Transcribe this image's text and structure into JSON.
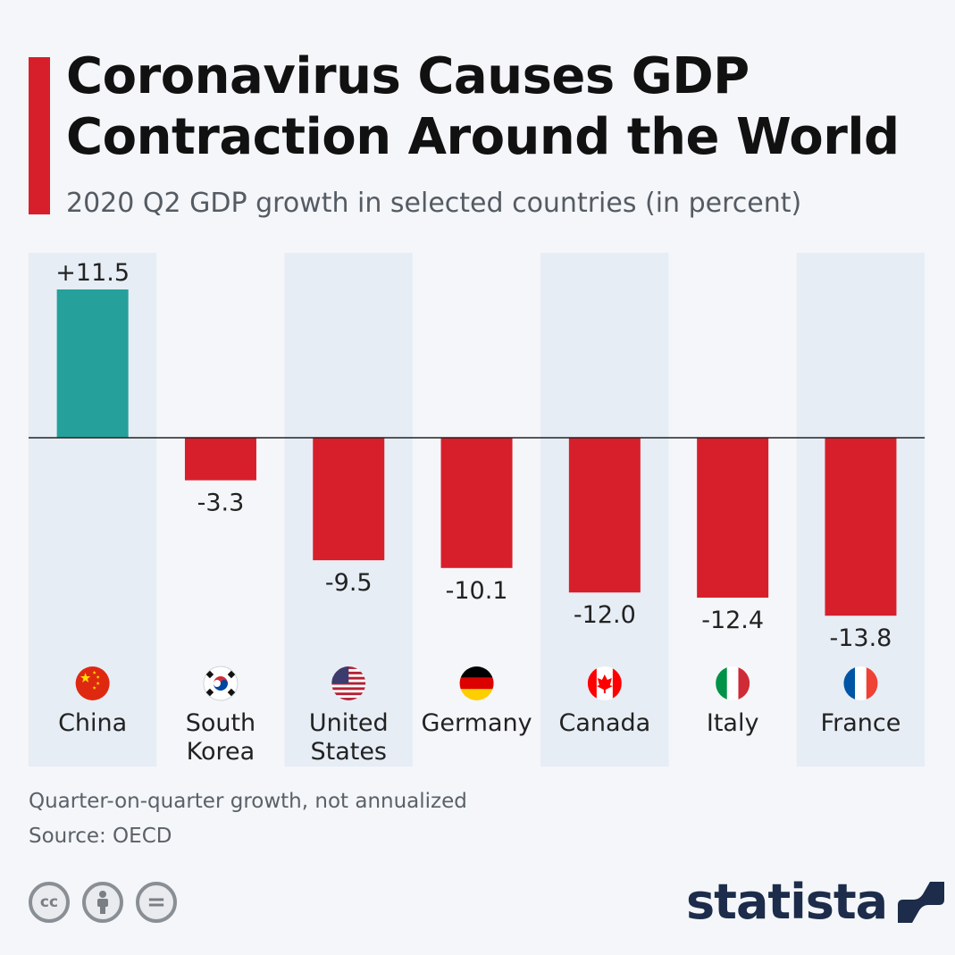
{
  "header": {
    "title": "Coronavirus Causes GDP Contraction Around the World",
    "subtitle": "2020 Q2 GDP growth in selected countries (in percent)"
  },
  "chart_data": {
    "type": "bar",
    "title": "Coronavirus Causes GDP Contraction Around the World",
    "subtitle": "2020 Q2 GDP growth in selected countries (in percent)",
    "categories": [
      "China",
      "South Korea",
      "United States",
      "Germany",
      "Canada",
      "Italy",
      "France"
    ],
    "category_lines": [
      [
        "China"
      ],
      [
        "South",
        "Korea"
      ],
      [
        "United",
        "States"
      ],
      [
        "Germany"
      ],
      [
        "Canada"
      ],
      [
        "Italy"
      ],
      [
        "France"
      ]
    ],
    "values": [
      11.5,
      -3.3,
      -9.5,
      -10.1,
      -12.0,
      -12.4,
      -13.8
    ],
    "value_labels": [
      "+11.5",
      "-3.3",
      "-9.5",
      "-10.1",
      "-12.0",
      "-12.4",
      "-13.8"
    ],
    "flag_icons": [
      "china-flag-icon",
      "south-korea-flag-icon",
      "united-states-flag-icon",
      "germany-flag-icon",
      "canada-flag-icon",
      "italy-flag-icon",
      "france-flag-icon"
    ],
    "ylim": [
      -13.8,
      11.5
    ],
    "xlabel": "",
    "ylabel": "",
    "grid": false,
    "legend": "none",
    "colors": {
      "positive": "#26a09a",
      "negative": "#d71f2b",
      "band": "#e6edf5",
      "baseline": "#222222",
      "text": "#222222"
    }
  },
  "footer": {
    "note": "Quarter-on-quarter growth, not annualized",
    "source": "Source: OECD",
    "brand": "statista",
    "license_icons": [
      "cc-icon",
      "attribution-icon",
      "no-derivatives-icon"
    ],
    "license_labels": [
      "cc",
      "",
      "="
    ]
  },
  "colors": {
    "accent": "#d71f2b",
    "background": "#f4f6f9",
    "brand": "#1c2c4a"
  }
}
